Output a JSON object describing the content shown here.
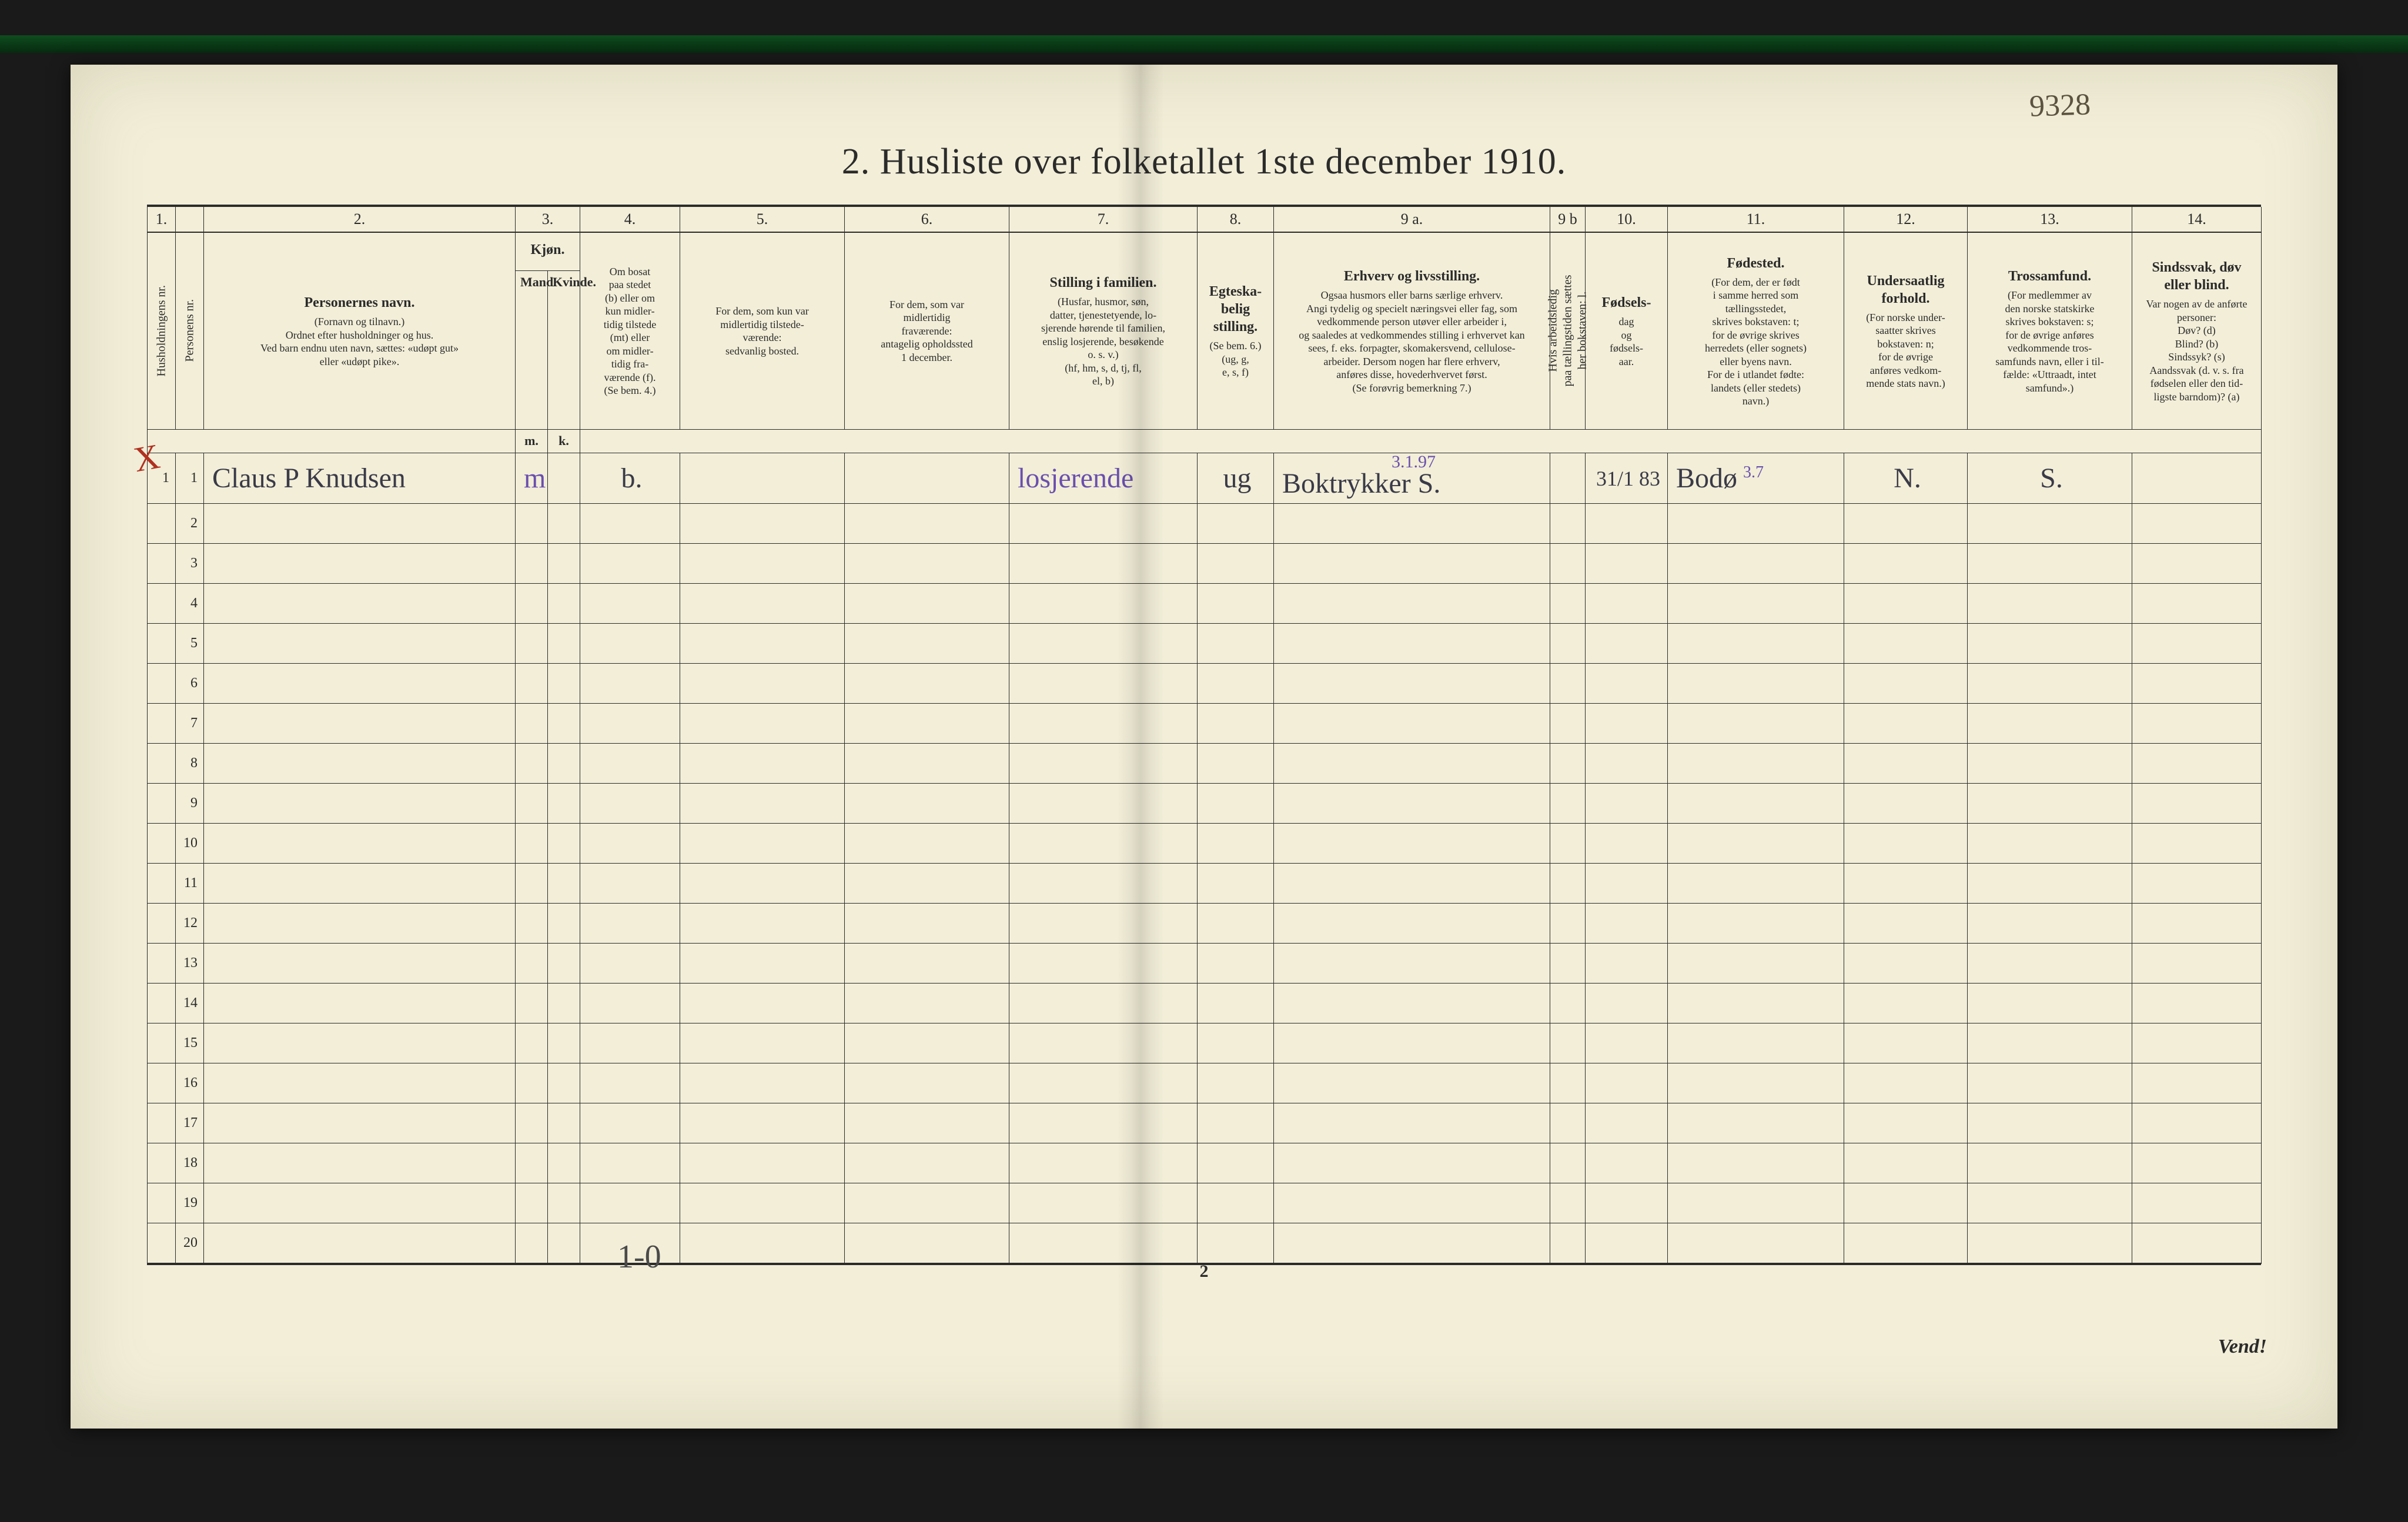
{
  "corner_annotation": "9328",
  "title": "2.  Husliste over folketallet 1ste december 1910.",
  "red_mark": "X",
  "colnums": [
    "1.",
    "",
    "2.",
    "3.",
    "",
    "4.",
    "5.",
    "6.",
    "7.",
    "8.",
    "9 a.",
    "9 b",
    "10.",
    "11.",
    "12.",
    "13.",
    "14."
  ],
  "headers": {
    "c1": "Husholdningens nr.",
    "c2": "Personens nr.",
    "c3_bold": "Personernes navn.",
    "c3_rest": "(Fornavn og tilnavn.)\nOrdnet efter husholdninger og hus.\nVed barn endnu uten navn, sættes: «udøpt gut»\neller «udøpt pike».",
    "c4_bold": "Kjøn.",
    "c4a": "Mand.",
    "c4b": "Kvinde.",
    "c4_foot_m": "m.",
    "c4_foot_k": "k.",
    "c5": "Om bosat\npaa stedet\n(b) eller om\nkun midler-\ntidig tilstede\n(mt) eller\nom midler-\ntidig fra-\nværende (f).\n(Se bem. 4.)",
    "c6": "For dem, som kun var\nmidlertidig tilstede-\nværende:\nsedvanlig bosted.",
    "c7": "For dem, som var\nmidlertidig\nfraværende:\nantagelig opholdssted\n1 december.",
    "c8_bold": "Stilling i familien.",
    "c8_rest": "(Husfar, husmor, søn,\ndatter, tjenestetyende, lo-\nsjerende hørende til familien,\nenslig losjerende, besøkende\no. s. v.)\n(hf, hm, s, d, tj, fl,\nel, b)",
    "c9_bold": "Egteska-\nbelig\nstilling.",
    "c9_rest": "(Se bem. 6.)\n(ug, g,\ne, s, f)",
    "c10_bold": "Erhverv og livsstilling.",
    "c10_rest": "Ogsaa husmors eller barns særlige erhverv.\nAngi tydelig og specielt næringsvei eller fag, som\nvedkommende person utøver eller arbeider i,\nog saaledes at vedkommendes stilling i erhvervet kan\nsees, f. eks. forpagter, skomakersvend, cellulose-\narbeider. Dersom nogen har flere erhverv,\nanføres disse, hovederhvervet først.\n(Se forøvrig bemerkning 7.)",
    "c10b": "Hvis arbeidsledig\npaa tællingstiden sættes\nher bokstaven: l.",
    "c11_bold": "Fødsels-",
    "c11_rest": "dag\nog\nfødsels-\naar.",
    "c12_bold": "Fødested.",
    "c12_rest": "(For dem, der er født\ni samme herred som\ntællingsstedet,\nskrives bokstaven: t;\nfor de øvrige skrives\nherredets (eller sognets)\neller byens navn.\nFor de i utlandet fødte:\nlandets (eller stedets)\nnavn.)",
    "c13_bold": "Undersaatlig\nforhold.",
    "c13_rest": "(For norske under-\nsaatter skrives\nbokstaven: n;\nfor de øvrige\nanføres vedkom-\nmende stats navn.)",
    "c14_bold": "Trossamfund.",
    "c14_rest": "(For medlemmer av\nden norske statskirke\nskrives bokstaven: s;\nfor de øvrige anføres\nvedkommende tros-\nsamfunds navn, eller i til-\nfælde: «Uttraadt, intet\nsamfund».)",
    "c15_bold": "Sindssvak, døv\neller blind.",
    "c15_rest": "Var nogen av de anførte\npersoner:\nDøv?        (d)\nBlind?      (b)\nSindssyk? (s)\nAandssvak (d. v. s. fra\nfødselen eller den tid-\nligste barndom)?  (a)"
  },
  "row1": {
    "hh": "1",
    "pn": "1",
    "name": "Claus P Knudsen",
    "sex_m": "m",
    "sex_k": "",
    "bosat": "b.",
    "c6": "",
    "c7": "",
    "famstilling": "losjerende",
    "egtesk": "ug",
    "erhverv": "Boktrykker   S.",
    "erhverv_sup": "3.1.97",
    "ledig": "",
    "fodselsdato": "31/1 83",
    "fodested": "Bodø",
    "fodested_sup": "3.7",
    "undersaat": "N.",
    "tros": "S.",
    "sinds": ""
  },
  "total_rows": 20,
  "foot_left": "1-0",
  "page_num": "2",
  "foot_right": "Vend!"
}
